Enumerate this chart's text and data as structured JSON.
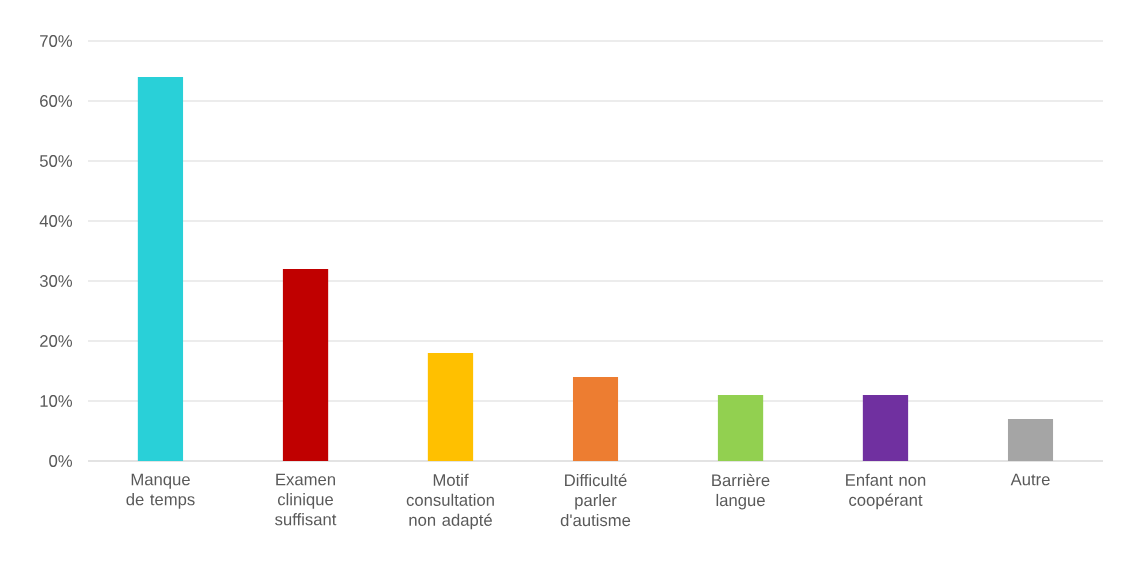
{
  "chart_data": {
    "type": "bar",
    "categories": [
      "Manque de temps",
      "Examen clinique suffisant",
      "Motif consultation non adapté",
      "Difficulté parler d'autisme",
      "Barrière langue",
      "Enfant non coopérant",
      "Autre"
    ],
    "values": [
      64,
      32,
      18,
      14,
      11,
      11,
      7
    ],
    "colors": [
      "#29d0d8",
      "#c00000",
      "#ffc000",
      "#ed7d31",
      "#92d050",
      "#7030a0",
      "#a5a5a5"
    ],
    "ylim": [
      0,
      70
    ],
    "yticks": [
      {
        "value": 0,
        "label": "0%"
      },
      {
        "value": 10,
        "label": "10%"
      },
      {
        "value": 20,
        "label": "20%"
      },
      {
        "value": 30,
        "label": "30%"
      },
      {
        "value": 40,
        "label": "40%"
      },
      {
        "value": 50,
        "label": "50%"
      },
      {
        "value": 60,
        "label": "60%"
      },
      {
        "value": 70,
        "label": "70%"
      }
    ],
    "grid": "y"
  }
}
